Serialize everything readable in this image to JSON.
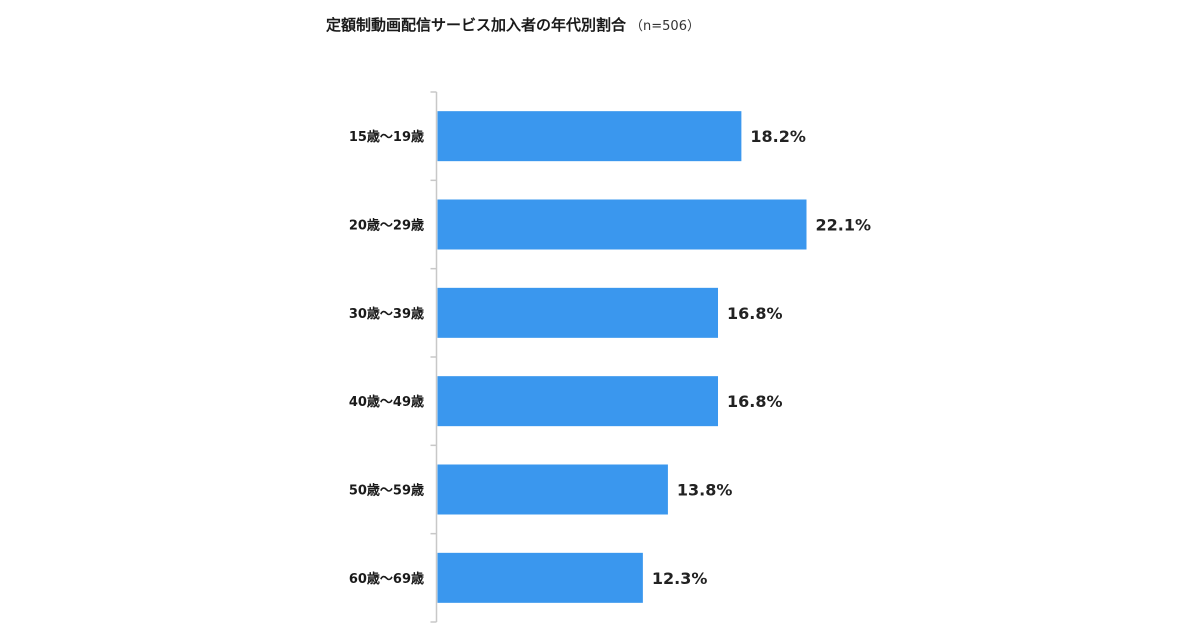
{
  "chart_data": {
    "type": "bar",
    "orientation": "horizontal",
    "title": "定額制動画配信サービス加入者の年代別割合",
    "subtitle": "（n=506）",
    "categories": [
      "15歳〜19歳",
      "20歳〜29歳",
      "30歳〜39歳",
      "40歳〜49歳",
      "50歳〜59歳",
      "60歳〜69歳"
    ],
    "values": [
      18.2,
      22.1,
      16.8,
      16.8,
      13.8,
      12.3
    ],
    "value_labels": [
      "18.2%",
      "22.1%",
      "16.8%",
      "16.8%",
      "13.8%",
      "12.3%"
    ],
    "xlabel": "",
    "ylabel": "",
    "xlim": [
      0,
      22.1
    ],
    "grid": false,
    "legend": "none",
    "bar_color": "#3a97ee",
    "axis_color": "#c8c8c8"
  }
}
